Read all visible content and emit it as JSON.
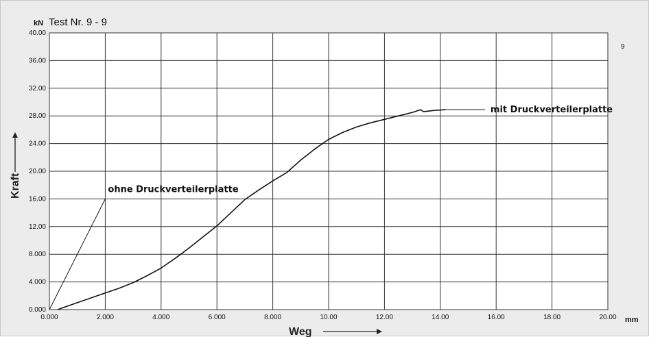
{
  "chart_data": {
    "type": "line",
    "title": "Test Nr.  9 - 9",
    "y_unit": "kN",
    "x_unit": "mm",
    "xlabel": "Weg",
    "ylabel": "Kraft",
    "side_label": "9",
    "xlim": [
      0,
      20
    ],
    "ylim": [
      0,
      40
    ],
    "grid": true,
    "x_ticks": [
      "0.000",
      "2.000",
      "4.000",
      "6.000",
      "8.000",
      "10.00",
      "12.00",
      "14.00",
      "16.00",
      "18.00",
      "20.00"
    ],
    "y_ticks": [
      "0.000",
      "4.000",
      "8.000",
      "12.00",
      "16.00",
      "20.00",
      "24.00",
      "28.00",
      "32.00",
      "36.00",
      "40.00"
    ],
    "series": [
      {
        "name": "mit Druckverteilerplatte",
        "x": [
          0.3,
          0.5,
          1.0,
          1.5,
          2.0,
          2.5,
          3.0,
          3.5,
          4.0,
          4.5,
          5.0,
          5.5,
          6.0,
          6.5,
          7.0,
          7.5,
          8.0,
          8.5,
          9.0,
          9.5,
          10.0,
          10.5,
          11.0,
          11.5,
          12.0,
          12.5,
          13.0,
          13.3,
          13.4,
          13.8,
          14.2
        ],
        "y": [
          0.0,
          0.3,
          1.0,
          1.7,
          2.4,
          3.1,
          3.9,
          4.9,
          6.0,
          7.4,
          8.9,
          10.5,
          12.1,
          14.0,
          15.9,
          17.3,
          18.6,
          19.8,
          21.6,
          23.2,
          24.6,
          25.6,
          26.4,
          27.0,
          27.5,
          28.0,
          28.5,
          28.9,
          28.6,
          28.8,
          28.9
        ]
      },
      {
        "name": "ohne Druckverteilerplatte",
        "x": [
          0,
          2.0
        ],
        "y": [
          0,
          16.0
        ]
      }
    ],
    "annotations": [
      {
        "text": "mit Druckverteilerplatte",
        "x": 14.2,
        "y": 28.9,
        "leader_to_x": 15.6
      },
      {
        "text": "ohne Druckverteilerplatte",
        "x": 2.0,
        "y": 16.0
      }
    ]
  }
}
